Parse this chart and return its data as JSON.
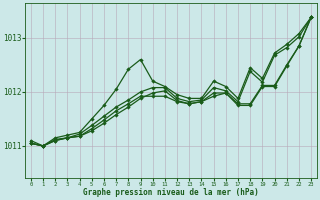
{
  "xlabel": "Graphe pression niveau de la mer (hPa)",
  "bg_color": "#cce8e8",
  "grid_color": "#b8a8b8",
  "line_color": "#1a5c1a",
  "xlim": [
    -0.5,
    23.5
  ],
  "ylim": [
    1010.4,
    1013.65
  ],
  "yticks": [
    1011,
    1012,
    1013
  ],
  "xticks": [
    0,
    1,
    2,
    3,
    4,
    5,
    6,
    7,
    8,
    9,
    10,
    11,
    12,
    13,
    14,
    15,
    16,
    17,
    18,
    19,
    20,
    21,
    22,
    23
  ],
  "series1": [
    1011.1,
    1011.0,
    1011.15,
    1011.2,
    1011.25,
    1011.5,
    1011.75,
    1012.05,
    1012.42,
    1012.6,
    1012.2,
    1012.1,
    1011.95,
    1011.88,
    1011.88,
    1012.2,
    1012.1,
    1011.88,
    1012.45,
    1012.25,
    1012.72,
    1012.88,
    1013.08,
    1013.38
  ],
  "series2": [
    1011.05,
    1011.0,
    1011.1,
    1011.15,
    1011.18,
    1011.28,
    1011.42,
    1011.58,
    1011.72,
    1011.88,
    1011.98,
    1012.02,
    1011.84,
    1011.78,
    1011.82,
    1011.92,
    1011.98,
    1011.78,
    1011.78,
    1012.12,
    1012.12,
    1012.5,
    1012.85,
    1013.38
  ],
  "series3": [
    1011.05,
    1011.0,
    1011.1,
    1011.15,
    1011.22,
    1011.38,
    1011.55,
    1011.72,
    1011.85,
    1012.0,
    1012.08,
    1012.08,
    1011.88,
    1011.82,
    1011.85,
    1012.08,
    1012.02,
    1011.82,
    1012.38,
    1012.18,
    1012.68,
    1012.82,
    1013.02,
    1013.38
  ],
  "series4": [
    1011.05,
    1011.0,
    1011.12,
    1011.15,
    1011.18,
    1011.32,
    1011.48,
    1011.65,
    1011.78,
    1011.92,
    1011.92,
    1011.92,
    1011.82,
    1011.78,
    1011.82,
    1011.98,
    1011.98,
    1011.75,
    1011.75,
    1012.1,
    1012.1,
    1012.48,
    1012.85,
    1013.38
  ]
}
